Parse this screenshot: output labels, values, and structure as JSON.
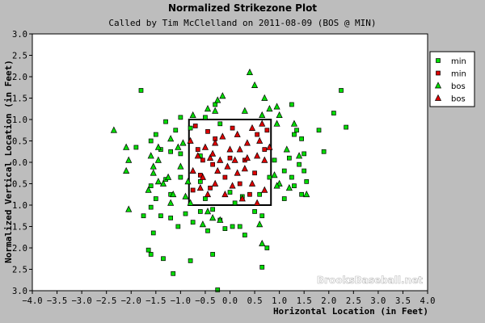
{
  "chart_data": {
    "type": "scatter",
    "title": "Normalized Strikezone Plot",
    "subtitle": "Called by Tim McClelland on 2011-08-09 (BOS @ MIN)",
    "xlabel": "Horizontal Location (in Feet)",
    "ylabel": "Normalized Vertical Location (in Feet)",
    "xlim": [
      -4.0,
      4.0
    ],
    "ylim": [
      -3.0,
      3.0
    ],
    "x_ticks": [
      -4.0,
      -3.5,
      -3.0,
      -2.5,
      -2.0,
      -1.5,
      -1.0,
      -0.5,
      0.0,
      0.5,
      1.0,
      1.5,
      2.0,
      2.5,
      3.0,
      3.5,
      4.0
    ],
    "y_ticks": [
      3.0,
      2.5,
      2.0,
      1.5,
      1.0,
      0.5,
      0.0,
      0.5,
      1.0,
      1.5,
      2.0,
      2.5,
      3.0
    ],
    "x_tick_labels": [
      "−4.0",
      "−3.5",
      "−3.0",
      "−2.5",
      "−2.0",
      "−1.5",
      "−1.0",
      "−0.5",
      "0.0",
      "0.5",
      "1.0",
      "1.5",
      "2.0",
      "2.5",
      "3.0",
      "3.5",
      "4.0"
    ],
    "y_tick_labels": [
      "3.0",
      "2.5",
      "2.0",
      "1.5",
      "1.0",
      "0.5",
      "0.0",
      "0.5",
      "1.0",
      "1.5",
      "2.0",
      "2.5",
      "3.0"
    ],
    "grid": false,
    "legend_position": "top-right",
    "strike_zone": {
      "x": [
        -0.83,
        0.83
      ],
      "y": [
        -1.0,
        1.0
      ]
    },
    "watermark": "BrooksBaseball.net",
    "series": [
      {
        "name": "min",
        "marker": "square",
        "color": "#00dd00",
        "points": [
          [
            -1.8,
            1.68
          ],
          [
            -1.3,
            0.95
          ],
          [
            -1.0,
            1.05
          ],
          [
            -0.5,
            1.05
          ],
          [
            -0.3,
            1.35
          ],
          [
            1.25,
            1.35
          ],
          [
            2.25,
            1.68
          ],
          [
            2.1,
            1.15
          ],
          [
            2.35,
            0.82
          ],
          [
            1.35,
            0.75
          ],
          [
            1.8,
            0.75
          ],
          [
            -0.2,
            0.9
          ],
          [
            -0.8,
            0.8
          ],
          [
            -1.1,
            0.75
          ],
          [
            -1.5,
            0.65
          ],
          [
            -1.6,
            0.5
          ],
          [
            -1.9,
            0.35
          ],
          [
            -1.4,
            0.3
          ],
          [
            -1.2,
            0.25
          ],
          [
            -1.0,
            0.2
          ],
          [
            -0.6,
            0.15
          ],
          [
            1.3,
            0.65
          ],
          [
            1.45,
            0.55
          ],
          [
            1.9,
            0.25
          ],
          [
            1.5,
            0.2
          ],
          [
            1.2,
            0.1
          ],
          [
            0.9,
            0.05
          ],
          [
            1.4,
            -0.05
          ],
          [
            1.5,
            -0.2
          ],
          [
            1.1,
            -0.2
          ],
          [
            1.25,
            -0.35
          ],
          [
            1.55,
            -0.45
          ],
          [
            1.3,
            -0.55
          ],
          [
            1.45,
            -0.75
          ],
          [
            1.1,
            -0.85
          ],
          [
            -1.0,
            -0.35
          ],
          [
            -1.3,
            -0.4
          ],
          [
            -1.6,
            -0.55
          ],
          [
            -1.2,
            -0.75
          ],
          [
            -1.5,
            -0.85
          ],
          [
            -1.6,
            -1.05
          ],
          [
            -1.75,
            -1.25
          ],
          [
            -1.4,
            -1.25
          ],
          [
            -1.2,
            -1.3
          ],
          [
            -0.9,
            -1.2
          ],
          [
            -0.6,
            -1.15
          ],
          [
            -0.75,
            -1.4
          ],
          [
            -1.05,
            -1.5
          ],
          [
            -1.55,
            -1.65
          ],
          [
            -1.65,
            -2.05
          ],
          [
            -1.6,
            -2.15
          ],
          [
            -1.35,
            -2.25
          ],
          [
            -1.15,
            -2.6
          ],
          [
            -0.8,
            -2.3
          ],
          [
            -0.35,
            -2.15
          ],
          [
            -0.45,
            -1.6
          ],
          [
            -0.1,
            -1.55
          ],
          [
            0.05,
            -1.5
          ],
          [
            0.3,
            -1.7
          ],
          [
            0.2,
            -1.5
          ],
          [
            0.5,
            -1.15
          ],
          [
            0.65,
            -1.25
          ],
          [
            0.65,
            -2.45
          ],
          [
            0.75,
            -2.0
          ],
          [
            -0.25,
            -2.98
          ],
          [
            -0.35,
            -1.1
          ],
          [
            0.25,
            -0.8
          ],
          [
            0.8,
            -0.35
          ],
          [
            -0.5,
            -0.85
          ],
          [
            0.0,
            -0.7
          ],
          [
            0.6,
            -0.75
          ],
          [
            -0.2,
            -1.35
          ],
          [
            0.1,
            -0.95
          ],
          [
            -0.6,
            -0.45
          ]
        ]
      },
      {
        "name": "min",
        "marker": "square",
        "color": "#dd0000",
        "points": [
          [
            -0.7,
            0.85
          ],
          [
            -0.45,
            0.72
          ],
          [
            -0.3,
            0.55
          ],
          [
            0.05,
            0.8
          ],
          [
            0.55,
            0.65
          ],
          [
            0.75,
            0.75
          ],
          [
            0.7,
            0.3
          ],
          [
            -0.65,
            0.3
          ],
          [
            -0.55,
            0.05
          ],
          [
            -0.35,
            -0.05
          ],
          [
            0.0,
            0.1
          ],
          [
            0.3,
            0.05
          ],
          [
            0.5,
            -0.25
          ],
          [
            -0.6,
            -0.3
          ],
          [
            -0.4,
            -0.6
          ],
          [
            0.2,
            -0.5
          ],
          [
            -0.1,
            -0.35
          ],
          [
            0.4,
            -0.75
          ],
          [
            -0.75,
            -0.65
          ]
        ]
      },
      {
        "name": "bos",
        "marker": "triangle",
        "color": "#00dd00",
        "points": [
          [
            -2.35,
            0.75
          ],
          [
            -2.05,
            0.05
          ],
          [
            -2.1,
            0.35
          ],
          [
            -2.1,
            -0.2
          ],
          [
            -2.05,
            -1.1
          ],
          [
            -1.55,
            -0.1
          ],
          [
            -1.6,
            0.15
          ],
          [
            -1.45,
            0.05
          ],
          [
            -1.35,
            -0.5
          ],
          [
            -1.25,
            -0.35
          ],
          [
            -1.0,
            -0.1
          ],
          [
            -0.85,
            -0.45
          ],
          [
            -0.95,
            0.45
          ],
          [
            -1.05,
            0.35
          ],
          [
            -1.2,
            0.55
          ],
          [
            -1.45,
            0.35
          ],
          [
            -0.75,
            1.1
          ],
          [
            -0.45,
            1.25
          ],
          [
            -0.3,
            1.2
          ],
          [
            -0.15,
            1.55
          ],
          [
            -0.25,
            1.45
          ],
          [
            0.3,
            1.2
          ],
          [
            0.4,
            2.1
          ],
          [
            0.5,
            1.8
          ],
          [
            0.7,
            1.5
          ],
          [
            0.8,
            1.25
          ],
          [
            1.0,
            1.1
          ],
          [
            0.95,
            1.3
          ],
          [
            0.65,
            1.1
          ],
          [
            0.95,
            0.9
          ],
          [
            1.3,
            0.9
          ],
          [
            1.4,
            0.15
          ],
          [
            1.15,
            0.3
          ],
          [
            1.55,
            -0.75
          ],
          [
            1.2,
            -0.6
          ],
          [
            1.0,
            -0.5
          ],
          [
            0.9,
            -0.3
          ],
          [
            0.95,
            -0.55
          ],
          [
            0.6,
            -1.45
          ],
          [
            0.65,
            -1.9
          ],
          [
            -0.2,
            -1.35
          ],
          [
            -0.35,
            -1.3
          ],
          [
            -0.45,
            -1.15
          ],
          [
            -0.9,
            -0.8
          ],
          [
            -1.2,
            -0.95
          ],
          [
            -1.55,
            -0.25
          ],
          [
            -1.65,
            -0.65
          ],
          [
            -1.45,
            -0.45
          ],
          [
            -1.15,
            -0.75
          ],
          [
            -0.8,
            -0.95
          ],
          [
            -0.55,
            -1.45
          ]
        ]
      },
      {
        "name": "bos",
        "marker": "triangle",
        "color": "#dd0000",
        "points": [
          [
            -0.8,
            0.5
          ],
          [
            -0.5,
            0.35
          ],
          [
            -0.3,
            0.45
          ],
          [
            -0.15,
            0.6
          ],
          [
            0.0,
            0.3
          ],
          [
            0.15,
            0.65
          ],
          [
            0.2,
            0.3
          ],
          [
            0.35,
            0.45
          ],
          [
            0.45,
            0.8
          ],
          [
            0.6,
            0.5
          ],
          [
            0.7,
            0.05
          ],
          [
            0.55,
            0.15
          ],
          [
            0.3,
            -0.15
          ],
          [
            0.15,
            -0.25
          ],
          [
            -0.05,
            -0.1
          ],
          [
            -0.2,
            0.05
          ],
          [
            -0.4,
            0.1
          ],
          [
            -0.65,
            0.15
          ],
          [
            -0.75,
            -0.2
          ],
          [
            -0.55,
            -0.35
          ],
          [
            -0.3,
            -0.5
          ],
          [
            -0.1,
            -0.75
          ],
          [
            0.05,
            -0.55
          ],
          [
            0.25,
            -0.85
          ],
          [
            0.45,
            -0.5
          ],
          [
            0.55,
            -0.95
          ],
          [
            0.7,
            -0.65
          ],
          [
            -0.45,
            -0.75
          ],
          [
            0.35,
            0.1
          ],
          [
            0.1,
            0.05
          ],
          [
            -0.25,
            -0.2
          ],
          [
            -0.6,
            -0.6
          ],
          [
            0.65,
            0.9
          ],
          [
            0.8,
            0.35
          ],
          [
            -0.35,
            0.2
          ]
        ]
      }
    ]
  }
}
